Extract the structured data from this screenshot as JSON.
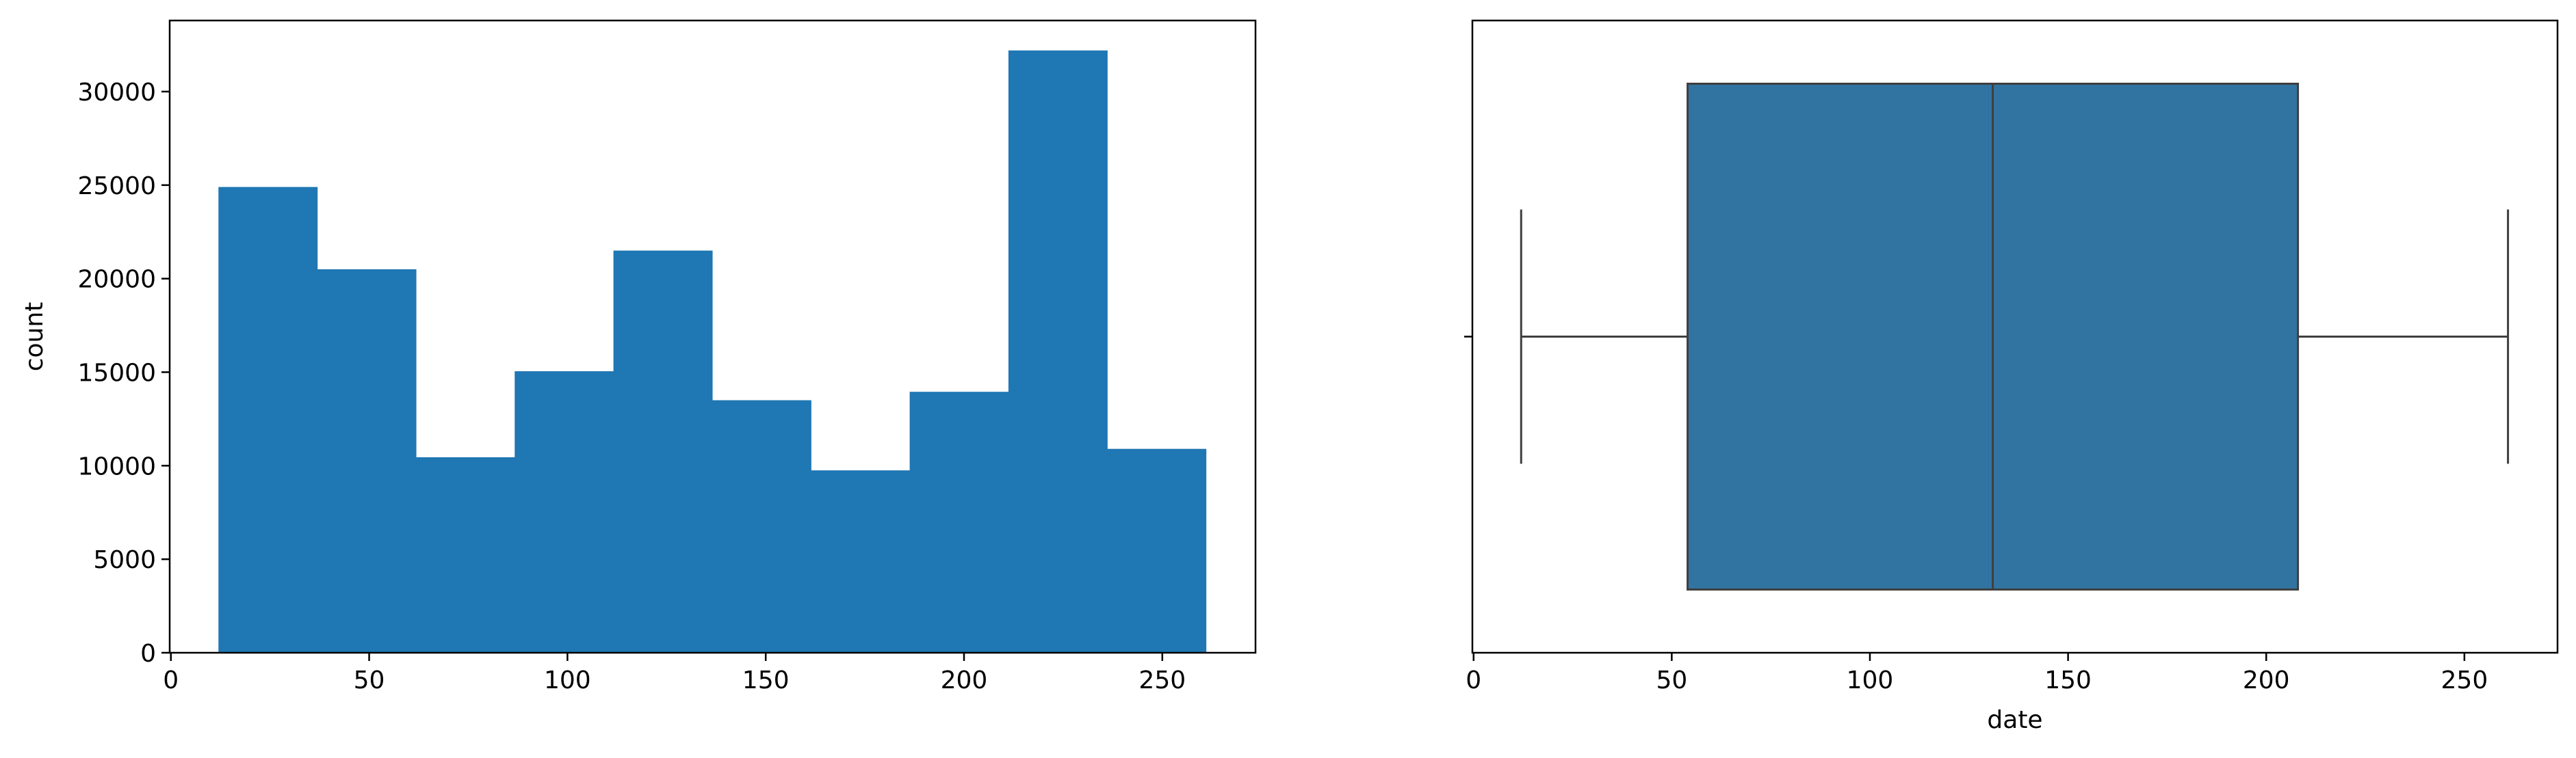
{
  "chart_data": [
    {
      "type": "bar",
      "title": "",
      "xlabel": "",
      "ylabel": "count",
      "xlim": [
        -0.3,
        273.5
      ],
      "ylim": [
        0,
        33800
      ],
      "xticks": [
        0,
        50,
        100,
        150,
        200,
        250
      ],
      "yticks": [
        0,
        5000,
        10000,
        15000,
        20000,
        25000,
        30000
      ],
      "bin_edges": [
        12,
        36.9,
        61.8,
        86.7,
        111.6,
        136.5,
        161.4,
        186.3,
        211.2,
        236.1,
        261
      ],
      "values": [
        24900,
        20500,
        10450,
        15050,
        21500,
        13500,
        9750,
        13950,
        32200,
        10900
      ],
      "color": "#1f77b4",
      "grid": false
    },
    {
      "type": "box",
      "title": "",
      "xlabel": "date",
      "ylabel": "",
      "xlim": [
        -0.3,
        273.5
      ],
      "xticks": [
        0,
        50,
        100,
        150,
        200,
        250
      ],
      "whisker_low": 12,
      "q1": 54,
      "median": 131,
      "q3": 208,
      "whisker_high": 261,
      "color": "#3274a1",
      "grid": false
    }
  ]
}
